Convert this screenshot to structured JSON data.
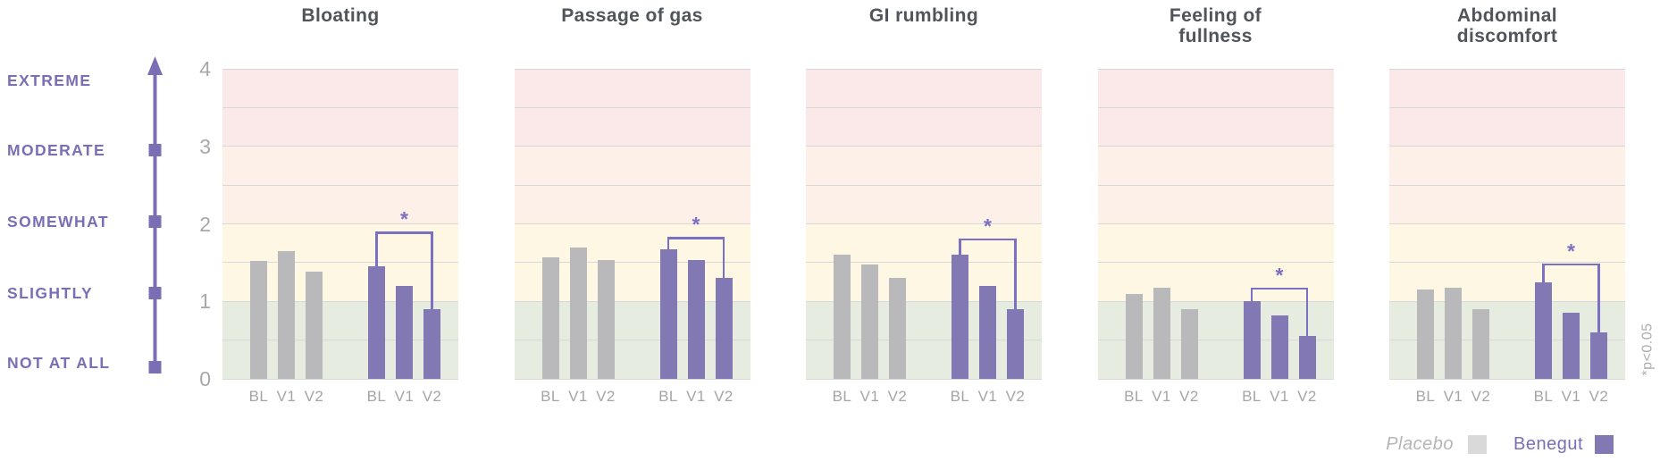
{
  "scale": {
    "labels": [
      "EXTREME",
      "MODERATE",
      "SOMEWHAT",
      "SLIGHTLY",
      "NOT AT ALL"
    ]
  },
  "axis": {
    "ticks": [
      "4",
      "3",
      "2",
      "1",
      "0"
    ],
    "ymin": 0,
    "ymax": 4
  },
  "legend": {
    "placebo_label": "Placebo",
    "benegut_label": "Benegut"
  },
  "footnote": "*p<0.05",
  "colors": {
    "accent_purple": "#7b6eb4",
    "benegut_bar": "#8279b4",
    "placebo_bar": "#b9b9bc",
    "placebo_swatch": "#d9d9d9",
    "bracket": "#7b70c2",
    "zone_extreme": "#fbe9ea",
    "zone_moderate": "#fcf0e8",
    "zone_somewhat": "#fdf7e3",
    "zone_not_at_all": "#e6ecdf",
    "gridline": "#d8d8d8",
    "title_text": "#4f555b",
    "muted_text": "#a5a5a7"
  },
  "chart_data": [
    {
      "type": "bar",
      "title": "Bloating",
      "categories": [
        "BL",
        "V1",
        "V2"
      ],
      "series": [
        {
          "name": "Placebo",
          "values": [
            1.52,
            1.65,
            1.38
          ]
        },
        {
          "name": "Benegut",
          "values": [
            1.45,
            1.2,
            0.9
          ]
        }
      ],
      "ylim": [
        0,
        4
      ],
      "significance": {
        "series": "Benegut",
        "from": "BL",
        "to": "V2",
        "label": "*",
        "bracket_y": 1.9
      }
    },
    {
      "type": "bar",
      "title": "Passage of gas",
      "categories": [
        "BL",
        "V1",
        "V2"
      ],
      "series": [
        {
          "name": "Placebo",
          "values": [
            1.57,
            1.7,
            1.53
          ]
        },
        {
          "name": "Benegut",
          "values": [
            1.67,
            1.53,
            1.3
          ]
        }
      ],
      "ylim": [
        0,
        4
      ],
      "significance": {
        "series": "Benegut",
        "from": "BL",
        "to": "V2",
        "label": "*",
        "bracket_y": 1.83
      }
    },
    {
      "type": "bar",
      "title": "GI rumbling",
      "categories": [
        "BL",
        "V1",
        "V2"
      ],
      "series": [
        {
          "name": "Placebo",
          "values": [
            1.6,
            1.48,
            1.3
          ]
        },
        {
          "name": "Benegut",
          "values": [
            1.6,
            1.2,
            0.9
          ]
        }
      ],
      "ylim": [
        0,
        4
      ],
      "significance": {
        "series": "Benegut",
        "from": "BL",
        "to": "V2",
        "label": "*",
        "bracket_y": 1.81
      }
    },
    {
      "type": "bar",
      "title": "Feeling of\nfullness",
      "categories": [
        "BL",
        "V1",
        "V2"
      ],
      "series": [
        {
          "name": "Placebo",
          "values": [
            1.1,
            1.18,
            0.9
          ]
        },
        {
          "name": "Benegut",
          "values": [
            1.0,
            0.82,
            0.55
          ]
        }
      ],
      "ylim": [
        0,
        4
      ],
      "significance": {
        "series": "Benegut",
        "from": "BL",
        "to": "V2",
        "label": "*",
        "bracket_y": 1.18
      }
    },
    {
      "type": "bar",
      "title": "Abdominal\ndiscomfort",
      "categories": [
        "BL",
        "V1",
        "V2"
      ],
      "series": [
        {
          "name": "Placebo",
          "values": [
            1.15,
            1.18,
            0.9
          ]
        },
        {
          "name": "Benegut",
          "values": [
            1.24,
            0.85,
            0.6
          ]
        }
      ],
      "ylim": [
        0,
        4
      ],
      "significance": {
        "series": "Benegut",
        "from": "BL",
        "to": "V2",
        "label": "*",
        "bracket_y": 1.49
      }
    }
  ]
}
